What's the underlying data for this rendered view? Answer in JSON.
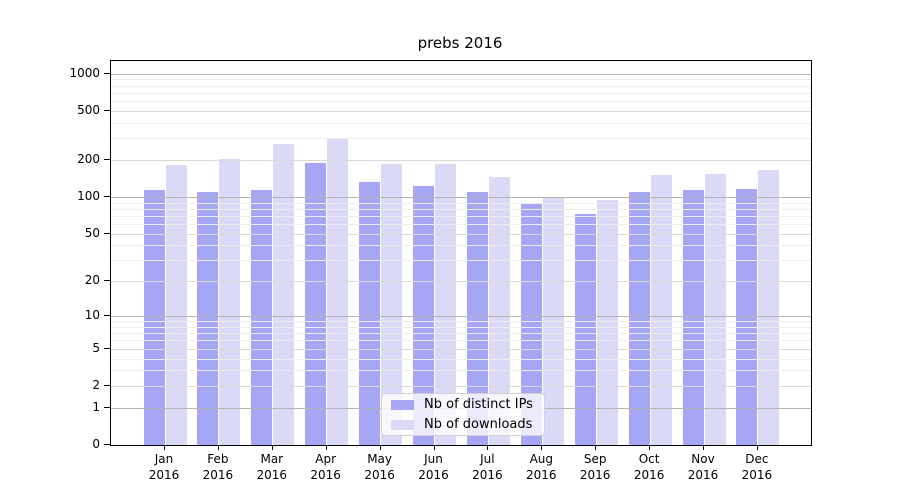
{
  "title": "prebs 2016",
  "colors": {
    "ips_bar": "#a6a6f4",
    "downloads_bar": "#dadaf7",
    "grid_decade": "#b4b4b4",
    "grid_mid": "#d9d9d9",
    "grid_minor": "#ededed",
    "axis": "#000000"
  },
  "legend": {
    "items": [
      {
        "label": "Nb of distinct IPs",
        "color_key": "ips_bar"
      },
      {
        "label": "Nb of downloads",
        "color_key": "downloads_bar"
      }
    ]
  },
  "chart_data": {
    "type": "bar",
    "title": "prebs 2016",
    "categories": [
      "Jan 2016",
      "Feb 2016",
      "Mar 2016",
      "Apr 2016",
      "May 2016",
      "Jun 2016",
      "Jul 2016",
      "Aug 2016",
      "Sep 2016",
      "Oct 2016",
      "Nov 2016",
      "Dec 2016"
    ],
    "series": [
      {
        "name": "Nb of distinct IPs",
        "values": [
          113,
          110,
          113,
          188,
          133,
          124,
          109,
          87,
          72,
          110,
          114,
          116
        ]
      },
      {
        "name": "Nb of downloads",
        "values": [
          182,
          204,
          272,
          304,
          185,
          185,
          146,
          100,
          94,
          152,
          153,
          166
        ]
      }
    ],
    "xlabel": "",
    "ylabel": "",
    "yscale": "symlog-ln(1+x)",
    "ylim": [
      0,
      1266
    ],
    "yticks": [
      0,
      1,
      2,
      5,
      10,
      20,
      50,
      100,
      200,
      500,
      1000
    ],
    "yticks_mid": [
      2,
      5,
      20,
      50,
      200,
      500
    ],
    "yticks_decade": [
      1,
      10,
      100,
      1000
    ],
    "yticks_minor": [
      3,
      4,
      6,
      7,
      8,
      9,
      30,
      40,
      60,
      70,
      80,
      90,
      300,
      400,
      600,
      700,
      800,
      900
    ],
    "grid": true,
    "legend_position": "lower center"
  }
}
